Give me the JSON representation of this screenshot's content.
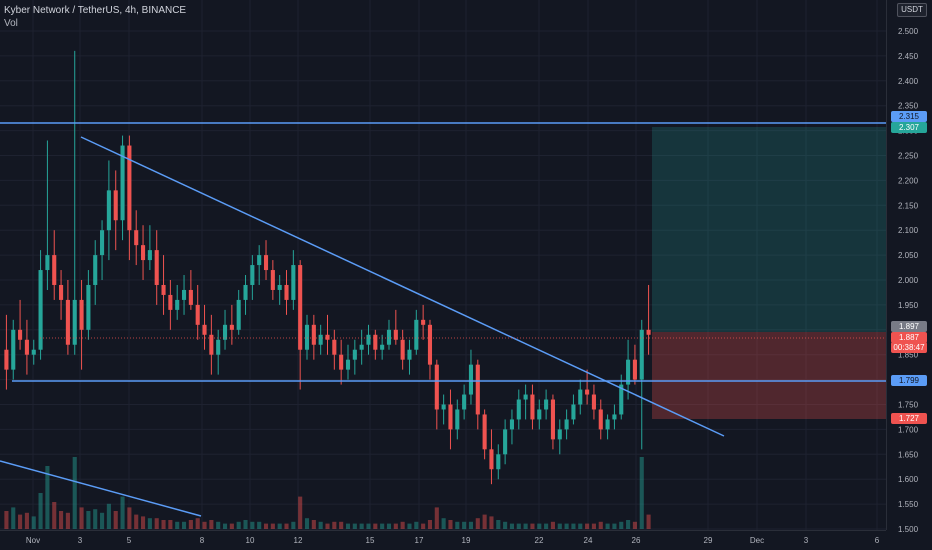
{
  "header": {
    "symbol_line": "Kyber Network / TetherUS, 4h, BINANCE",
    "volume_label": "Vol",
    "currency": "USDT"
  },
  "colors": {
    "background": "#131722",
    "grid": "#1e2230",
    "up": "#26a69a",
    "down": "#ef5350",
    "trendline": "#5b9cf6",
    "axis_text": "#b2b5be"
  },
  "price_labels": {
    "resistance": "2.315",
    "target": "2.307",
    "current": "1.897",
    "last": "1.887",
    "countdown": "00:38:47",
    "support": "1.799",
    "stop": "1.727"
  },
  "chart_data": {
    "type": "candlestick",
    "title": "Kyber Network / TetherUS, 4h, BINANCE",
    "y_ticks": [
      "2.500",
      "2.450",
      "2.400",
      "2.350",
      "2.300",
      "2.250",
      "2.200",
      "2.150",
      "2.100",
      "2.050",
      "2.000",
      "1.950",
      "1.900",
      "1.850",
      "1.800",
      "1.750",
      "1.700",
      "1.650",
      "1.600",
      "1.550",
      "1.500"
    ],
    "ylim": [
      1.5,
      2.55
    ],
    "x_ticks": [
      "Nov",
      "3",
      "5",
      "8",
      "10",
      "12",
      "15",
      "17",
      "19",
      "22",
      "24",
      "26",
      "29",
      "Dec",
      "3",
      "6"
    ],
    "ohlc": [
      [
        1.86,
        1.93,
        1.78,
        1.82
      ],
      [
        1.82,
        1.92,
        1.8,
        1.9
      ],
      [
        1.9,
        1.96,
        1.86,
        1.88
      ],
      [
        1.88,
        1.92,
        1.81,
        1.85
      ],
      [
        1.85,
        1.88,
        1.83,
        1.86
      ],
      [
        1.86,
        2.06,
        1.84,
        2.02
      ],
      [
        2.02,
        2.28,
        1.98,
        2.05
      ],
      [
        2.05,
        2.1,
        1.96,
        1.99
      ],
      [
        1.99,
        2.02,
        1.92,
        1.96
      ],
      [
        1.96,
        2.0,
        1.85,
        1.87
      ],
      [
        1.87,
        2.46,
        1.85,
        1.96
      ],
      [
        1.96,
        2.0,
        1.82,
        1.9
      ],
      [
        1.9,
        2.02,
        1.88,
        1.99
      ],
      [
        1.99,
        2.08,
        1.95,
        2.05
      ],
      [
        2.05,
        2.12,
        2.0,
        2.1
      ],
      [
        2.1,
        2.24,
        2.04,
        2.18
      ],
      [
        2.18,
        2.22,
        2.06,
        2.12
      ],
      [
        2.12,
        2.29,
        2.08,
        2.27
      ],
      [
        2.27,
        2.29,
        2.04,
        2.1
      ],
      [
        2.1,
        2.14,
        2.03,
        2.07
      ],
      [
        2.07,
        2.11,
        2.0,
        2.04
      ],
      [
        2.04,
        2.11,
        2.02,
        2.06
      ],
      [
        2.06,
        2.1,
        1.95,
        1.99
      ],
      [
        1.99,
        2.05,
        1.93,
        1.97
      ],
      [
        1.97,
        2.0,
        1.9,
        1.94
      ],
      [
        1.94,
        1.99,
        1.92,
        1.96
      ],
      [
        1.96,
        2.01,
        1.93,
        1.98
      ],
      [
        1.98,
        2.02,
        1.94,
        1.95
      ],
      [
        1.95,
        1.99,
        1.88,
        1.91
      ],
      [
        1.91,
        1.95,
        1.86,
        1.89
      ],
      [
        1.89,
        1.93,
        1.81,
        1.85
      ],
      [
        1.85,
        1.9,
        1.81,
        1.88
      ],
      [
        1.88,
        1.94,
        1.86,
        1.91
      ],
      [
        1.91,
        1.95,
        1.87,
        1.9
      ],
      [
        1.9,
        1.98,
        1.89,
        1.96
      ],
      [
        1.96,
        2.01,
        1.93,
        1.99
      ],
      [
        1.99,
        2.05,
        1.96,
        2.03
      ],
      [
        2.03,
        2.07,
        1.99,
        2.05
      ],
      [
        2.05,
        2.08,
        2.0,
        2.02
      ],
      [
        2.02,
        2.04,
        1.96,
        1.98
      ],
      [
        1.98,
        2.01,
        1.95,
        1.99
      ],
      [
        1.99,
        2.02,
        1.93,
        1.96
      ],
      [
        1.96,
        2.06,
        1.94,
        2.03
      ],
      [
        2.03,
        2.04,
        1.78,
        1.86
      ],
      [
        1.86,
        1.93,
        1.84,
        1.91
      ],
      [
        1.91,
        1.93,
        1.84,
        1.87
      ],
      [
        1.87,
        1.91,
        1.85,
        1.89
      ],
      [
        1.89,
        1.93,
        1.85,
        1.88
      ],
      [
        1.88,
        1.9,
        1.82,
        1.85
      ],
      [
        1.85,
        1.88,
        1.79,
        1.82
      ],
      [
        1.82,
        1.87,
        1.8,
        1.84
      ],
      [
        1.84,
        1.88,
        1.81,
        1.86
      ],
      [
        1.86,
        1.9,
        1.83,
        1.87
      ],
      [
        1.87,
        1.91,
        1.85,
        1.89
      ],
      [
        1.89,
        1.9,
        1.84,
        1.86
      ],
      [
        1.86,
        1.89,
        1.84,
        1.87
      ],
      [
        1.87,
        1.92,
        1.86,
        1.9
      ],
      [
        1.9,
        1.94,
        1.87,
        1.88
      ],
      [
        1.88,
        1.9,
        1.82,
        1.84
      ],
      [
        1.84,
        1.88,
        1.81,
        1.86
      ],
      [
        1.86,
        1.94,
        1.85,
        1.92
      ],
      [
        1.92,
        1.95,
        1.88,
        1.91
      ],
      [
        1.91,
        1.92,
        1.8,
        1.83
      ],
      [
        1.83,
        1.84,
        1.7,
        1.74
      ],
      [
        1.74,
        1.77,
        1.71,
        1.75
      ],
      [
        1.75,
        1.78,
        1.66,
        1.7
      ],
      [
        1.7,
        1.76,
        1.68,
        1.74
      ],
      [
        1.74,
        1.79,
        1.72,
        1.77
      ],
      [
        1.77,
        1.86,
        1.75,
        1.83
      ],
      [
        1.83,
        1.84,
        1.7,
        1.73
      ],
      [
        1.73,
        1.74,
        1.64,
        1.66
      ],
      [
        1.66,
        1.7,
        1.59,
        1.62
      ],
      [
        1.62,
        1.67,
        1.6,
        1.65
      ],
      [
        1.65,
        1.72,
        1.63,
        1.7
      ],
      [
        1.7,
        1.74,
        1.67,
        1.72
      ],
      [
        1.72,
        1.78,
        1.7,
        1.76
      ],
      [
        1.76,
        1.79,
        1.72,
        1.77
      ],
      [
        1.77,
        1.79,
        1.7,
        1.72
      ],
      [
        1.72,
        1.76,
        1.7,
        1.74
      ],
      [
        1.74,
        1.78,
        1.72,
        1.76
      ],
      [
        1.76,
        1.77,
        1.66,
        1.68
      ],
      [
        1.68,
        1.72,
        1.65,
        1.7
      ],
      [
        1.7,
        1.74,
        1.68,
        1.72
      ],
      [
        1.72,
        1.77,
        1.71,
        1.75
      ],
      [
        1.75,
        1.8,
        1.73,
        1.78
      ],
      [
        1.78,
        1.82,
        1.75,
        1.77
      ],
      [
        1.77,
        1.79,
        1.72,
        1.74
      ],
      [
        1.74,
        1.76,
        1.68,
        1.7
      ],
      [
        1.7,
        1.73,
        1.68,
        1.72
      ],
      [
        1.72,
        1.75,
        1.7,
        1.73
      ],
      [
        1.73,
        1.81,
        1.72,
        1.79
      ],
      [
        1.79,
        1.88,
        1.76,
        1.84
      ],
      [
        1.84,
        1.87,
        1.79,
        1.8
      ],
      [
        1.8,
        1.92,
        1.66,
        1.9
      ],
      [
        1.9,
        1.99,
        1.85,
        1.89
      ]
    ],
    "volume": [
      10,
      12,
      8,
      9,
      7,
      20,
      35,
      15,
      10,
      9,
      40,
      12,
      10,
      11,
      9,
      14,
      10,
      18,
      12,
      8,
      7,
      6,
      6,
      5,
      5,
      4,
      4,
      5,
      6,
      4,
      5,
      4,
      3,
      3,
      4,
      5,
      4,
      4,
      3,
      3,
      3,
      3,
      4,
      18,
      6,
      5,
      4,
      3,
      4,
      4,
      3,
      3,
      3,
      3,
      3,
      3,
      3,
      3,
      4,
      3,
      4,
      3,
      5,
      12,
      6,
      5,
      4,
      4,
      4,
      6,
      8,
      7,
      5,
      4,
      3,
      3,
      3,
      3,
      3,
      3,
      4,
      3,
      3,
      3,
      3,
      3,
      3,
      4,
      3,
      3,
      4,
      5,
      4,
      40,
      8
    ],
    "volume_colors": "up/down per candle"
  }
}
